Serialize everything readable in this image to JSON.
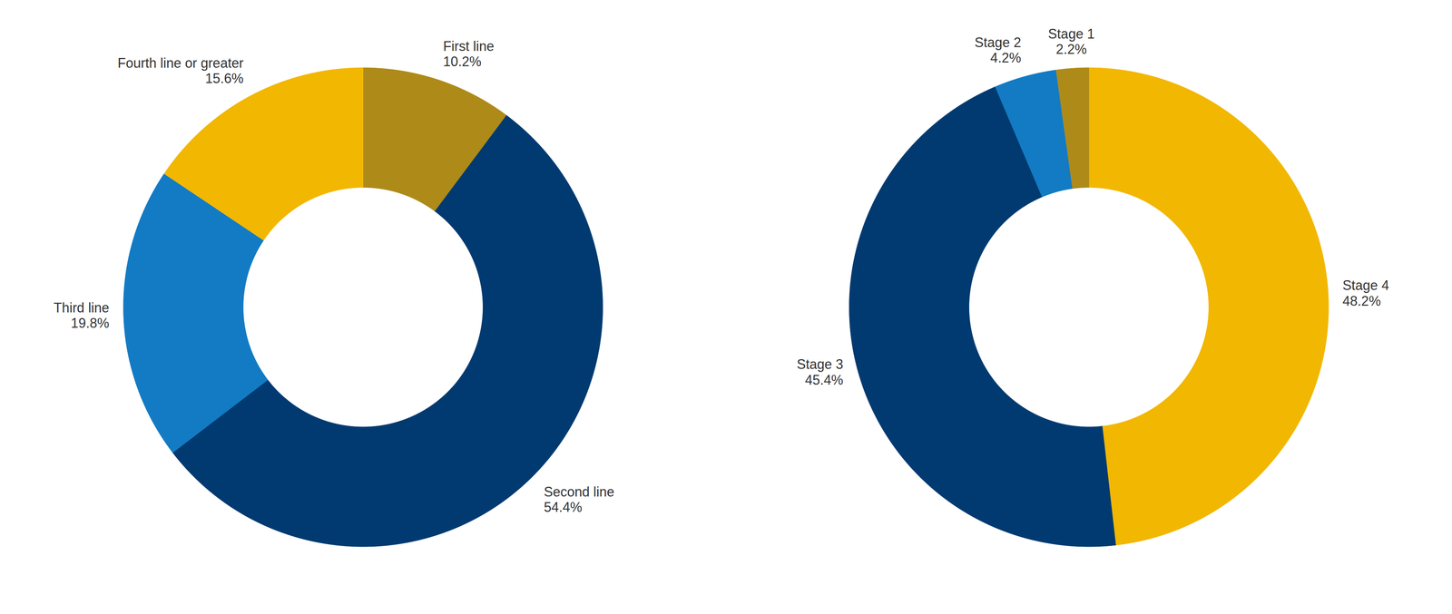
{
  "chart_data": [
    {
      "type": "donut",
      "categories": [
        "First line",
        "Second line",
        "Third line",
        "Fourth line or greater"
      ],
      "values": [
        10.2,
        54.4,
        19.8,
        15.6
      ],
      "value_labels": [
        "10.2%",
        "54.4%",
        "19.8%",
        "15.6%"
      ],
      "colors": [
        "#ae8a19",
        "#003a70",
        "#127bc4",
        "#f2b700"
      ],
      "data_labels": true
    },
    {
      "type": "donut",
      "categories": [
        "Stage 4",
        "Stage 3",
        "Stage 2",
        "Stage 1"
      ],
      "values": [
        48.2,
        45.4,
        4.2,
        2.2
      ],
      "value_labels": [
        "48.2%",
        "45.4%",
        "4.2%",
        "2.2%"
      ],
      "colors": [
        "#f2b700",
        "#003a70",
        "#127bc4",
        "#ae8a19"
      ],
      "data_labels": true
    }
  ]
}
